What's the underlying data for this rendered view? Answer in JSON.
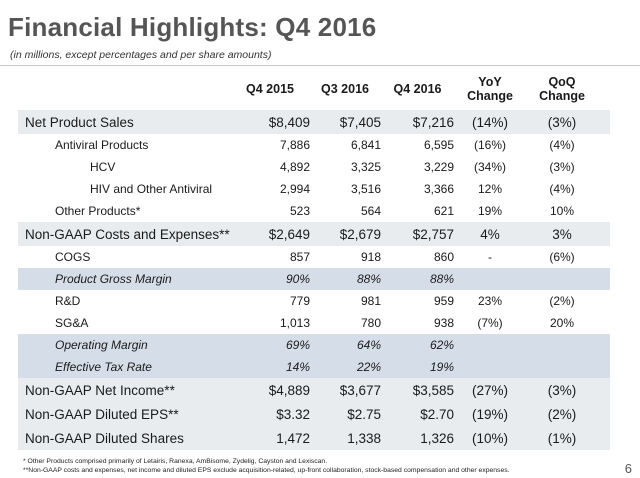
{
  "title": "Financial Highlights:  Q4 2016",
  "subtitle": "(in millions, except percentages and per share amounts)",
  "columns": [
    "Q4 2015",
    "Q3 2016",
    "Q4 2016",
    "YoY\nChange",
    "QoQ\nChange"
  ],
  "rows": [
    {
      "label": "Net Product Sales",
      "v": [
        "$8,409",
        "$7,405",
        "$7,216",
        "(14%)",
        "(3%)"
      ]
    },
    {
      "label": "Antiviral Products",
      "v": [
        "7,886",
        "6,841",
        "6,595",
        "(16%)",
        "(4%)"
      ]
    },
    {
      "label": "HCV",
      "v": [
        "4,892",
        "3,325",
        "3,229",
        "(34%)",
        "(3%)"
      ]
    },
    {
      "label": "HIV and Other Antiviral",
      "v": [
        "2,994",
        "3,516",
        "3,366",
        "12%",
        "(4%)"
      ]
    },
    {
      "label": "Other Products*",
      "v": [
        "523",
        "564",
        "621",
        "19%",
        "10%"
      ]
    },
    {
      "label": "Non-GAAP Costs and Expenses**",
      "v": [
        "$2,649",
        "$2,679",
        "$2,757",
        "4%",
        "3%"
      ]
    },
    {
      "label": "COGS",
      "v": [
        "857",
        "918",
        "860",
        "-",
        "(6%)"
      ]
    },
    {
      "label": "Product Gross Margin",
      "v": [
        "90%",
        "88%",
        "88%",
        "",
        ""
      ]
    },
    {
      "label": "R&D",
      "v": [
        "779",
        "981",
        "959",
        "23%",
        "(2%)"
      ]
    },
    {
      "label": "SG&A",
      "v": [
        "1,013",
        "780",
        "938",
        "(7%)",
        "20%"
      ]
    },
    {
      "label": "Operating Margin",
      "v": [
        "69%",
        "64%",
        "62%",
        "",
        ""
      ]
    },
    {
      "label": "Effective Tax Rate",
      "v": [
        "14%",
        "22%",
        "19%",
        "",
        ""
      ]
    },
    {
      "label": "Non-GAAP Net Income**",
      "v": [
        "$4,889",
        "$3,677",
        "$3,585",
        "(27%)",
        "(3%)"
      ]
    },
    {
      "label": "Non-GAAP Diluted EPS**",
      "v": [
        "$3.32",
        "$2.75",
        "$2.70",
        "(19%)",
        "(2%)"
      ]
    },
    {
      "label": "Non-GAAP Diluted Shares",
      "v": [
        "1,472",
        "1,338",
        "1,326",
        "(10%)",
        "(1%)"
      ]
    }
  ],
  "footnotes": [
    "* Other Products comprised primarily of Letairis, Ranexa, AmBisome, Zydelig, Cayston and Lexiscan.",
    "**Non-GAAP costs and expenses, net income and diluted EPS exclude acquisition-related, up-front collaboration, stock-based compensation and other expenses."
  ],
  "page_number": "6",
  "colors": {
    "title": "#555555",
    "section_band": "#e9ecef",
    "margin_band": "#d5dee8"
  }
}
